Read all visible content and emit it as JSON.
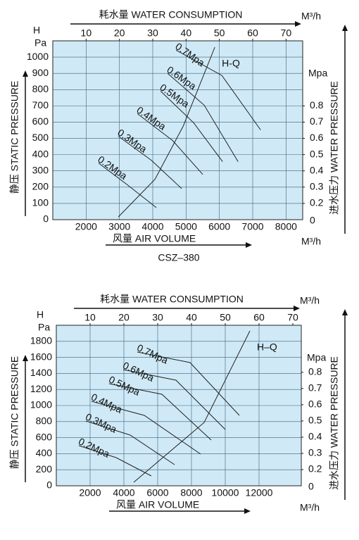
{
  "chart_data": [
    {
      "type": "line",
      "x_label": "风量 AIR VOLUME",
      "x_unit": "M³/h",
      "x2_label": "耗水量 WATER CONSUMPTION",
      "x2_unit": "M³/h",
      "y_symbol": "H",
      "y_unit": "Pa",
      "y_label": "静压 STATIC PRESSURE",
      "y2_unit": "Mpa",
      "y2_label": "进水压力 WATER PRESSURE",
      "y2_corner_label": "0",
      "xlim": [
        1000,
        8500
      ],
      "xticks": [
        2000,
        3000,
        4000,
        5000,
        6000,
        7000,
        8000
      ],
      "ylim": [
        0,
        1100
      ],
      "yticks": [
        0,
        100,
        200,
        300,
        400,
        500,
        600,
        700,
        800,
        900,
        1000
      ],
      "x2lim": [
        0,
        75
      ],
      "x2ticks": [
        10,
        20,
        30,
        40,
        50,
        60,
        70
      ],
      "y2lim": [
        0.1,
        1.2
      ],
      "y2ticks": [
        0.2,
        0.3,
        0.4,
        0.5,
        0.6,
        0.7,
        0.8
      ],
      "grid": true,
      "plot_background": "#cfeaf6",
      "grid_color": "#3d5f80",
      "series": [
        {
          "name": "0.2Mpa",
          "color": "#222222",
          "x": [
            2374,
            3220,
            4108
          ],
          "values": [
            348,
            217,
            74
          ]
        },
        {
          "name": "0.3Mpa",
          "color": "#222222",
          "x": [
            2966,
            3960,
            4869
          ],
          "values": [
            513,
            365,
            191
          ]
        },
        {
          "name": "0.4Mpa",
          "color": "#222222",
          "x": [
            3537,
            4594,
            5503
          ],
          "values": [
            652,
            487,
            278
          ]
        },
        {
          "name": "0.5Mpa",
          "color": "#222222",
          "x": [
            4235,
            5228,
            6095
          ],
          "values": [
            791,
            596,
            357
          ]
        },
        {
          "name": "0.6Mpa",
          "color": "#222222",
          "x": [
            4446,
            5545,
            6560
          ],
          "values": [
            900,
            704,
            357
          ]
        },
        {
          "name": "0.7Mpa",
          "color": "#222222",
          "x": [
            4700,
            6074,
            7236
          ],
          "values": [
            1043,
            887,
            552
          ]
        },
        {
          "name": "H-Q",
          "color": "#222222",
          "x": [
            2966,
            4065,
            4911,
            5863
          ],
          "values": [
            17,
            248,
            574,
            1061
          ]
        }
      ]
    },
    {
      "type": "line",
      "title": "CSZ–380",
      "x_label": "风量 AIR VOLUME",
      "x_unit": "M³/h",
      "x2_label": "耗水量 WATER CONSUMPTION",
      "x2_unit": "M³/h",
      "y_symbol": "H",
      "y_unit": "Pa",
      "y_label": "静压 STATIC PRESSURE",
      "y2_unit": "Mpa",
      "y2_label": "进水压力 WATER PRESSURE",
      "y2_corner_label": "0",
      "xlim": [
        0,
        14500
      ],
      "xticks": [
        2000,
        4000,
        6000,
        8000,
        10000,
        12000
      ],
      "ylim": [
        0,
        2000
      ],
      "yticks": [
        0,
        200,
        400,
        600,
        800,
        1000,
        1200,
        1400,
        1600,
        1800
      ],
      "x2lim": [
        0,
        72.5
      ],
      "x2ticks": [
        10,
        20,
        30,
        40,
        50,
        60,
        70
      ],
      "y2lim": [
        0.1,
        1.09
      ],
      "y2ticks": [
        0.2,
        0.3,
        0.4,
        0.5,
        0.6,
        0.7,
        0.8
      ],
      "grid": true,
      "plot_background": "#cfeaf6",
      "grid_color": "#3d5f80",
      "series": [
        {
          "name": "0.2Mpa",
          "color": "#222222",
          "x": [
            1333,
            3542,
            5625
          ],
          "values": [
            500,
            351,
            123
          ]
        },
        {
          "name": "0.3Mpa",
          "color": "#222222",
          "x": [
            1750,
            4375,
            7000
          ],
          "values": [
            807,
            632,
            263
          ]
        },
        {
          "name": "0.4Mpa",
          "color": "#222222",
          "x": [
            2083,
            5208,
            8542
          ],
          "values": [
            1053,
            877,
            395
          ]
        },
        {
          "name": "0.5Mpa",
          "color": "#222222",
          "x": [
            3125,
            6250,
            9167
          ],
          "values": [
            1272,
            1140,
            570
          ]
        },
        {
          "name": "0.6Mpa",
          "color": "#222222",
          "x": [
            3958,
            7083,
            10000
          ],
          "values": [
            1447,
            1316,
            702
          ]
        },
        {
          "name": "0.7Mpa",
          "color": "#222222",
          "x": [
            4792,
            7917,
            10833
          ],
          "values": [
            1667,
            1535,
            877
          ]
        },
        {
          "name": "H–Q",
          "color": "#222222",
          "x": [
            4583,
            8750,
            11458
          ],
          "values": [
            44,
            789,
            1930
          ]
        }
      ]
    }
  ]
}
